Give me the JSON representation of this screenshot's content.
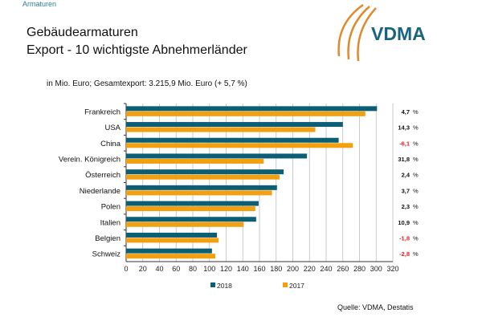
{
  "header": {
    "breadcrumb": "Armaturen",
    "title_line1": "Gebäudearmaturen",
    "title_line2": "Export - 10 wichtigste Abnehmerländer",
    "logo_text": "VDMA"
  },
  "footer": {
    "source": "Quelle: VDMA, Destatis"
  },
  "colors": {
    "2018": "#0c5e75",
    "2017": "#f2a00f",
    "negative": "#e31b1b",
    "logo_orange": "#e08a2c",
    "logo_blue": "#1a6480"
  },
  "chart_data": {
    "type": "bar",
    "orientation": "horizontal",
    "subtitle": "in Mio. Euro; Gesamtexport: 3.215,9 Mio. Euro (+ 5,7 %)",
    "categories": [
      "Frankreich",
      "USA",
      "China",
      "Verein. Königreich",
      "Österreich",
      "Niederlande",
      "Polen",
      "Italien",
      "Belgien",
      "Schweiz"
    ],
    "series": [
      {
        "name": "2018",
        "values": [
          301,
          260,
          255,
          217,
          189,
          181,
          159,
          156,
          109,
          103
        ]
      },
      {
        "name": "2017",
        "values": [
          287,
          227,
          272,
          165,
          184,
          175,
          155,
          141,
          111,
          107
        ]
      }
    ],
    "change_labels": [
      "4,7",
      "14,3",
      "-6,1",
      "31,8",
      "2,4",
      "3,7",
      "2,3",
      "10,9",
      "-1,8",
      "-2,8"
    ],
    "percent_sign": "%",
    "xlim": [
      0,
      320
    ],
    "xticks": [
      "0",
      "20",
      "40",
      "60",
      "80",
      "100",
      "120",
      "140",
      "160",
      "180",
      "200",
      "220",
      "240",
      "260",
      "280",
      "300",
      "320"
    ],
    "grid": true,
    "legend": "bottom"
  }
}
